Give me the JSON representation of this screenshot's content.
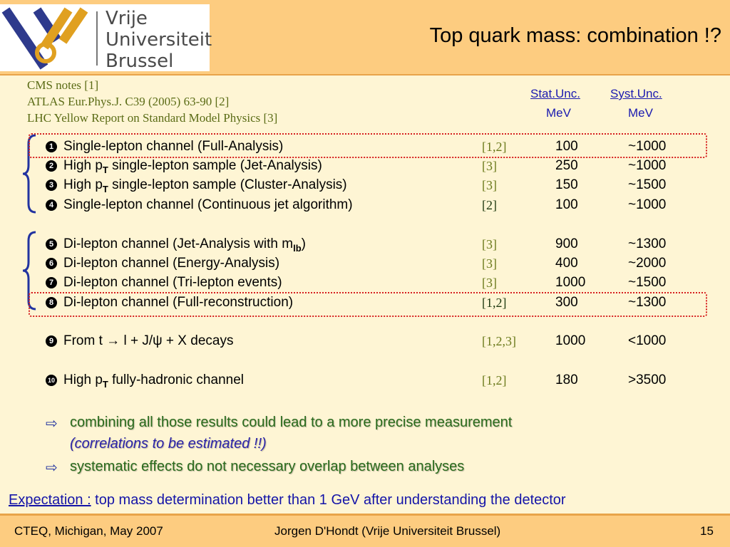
{
  "header": {
    "logo_lines": [
      "Vrije",
      "Universiteit",
      "Brussel"
    ],
    "title": "Top quark mass: combination !?"
  },
  "references": [
    "CMS notes [1]",
    "ATLAS Eur.Phys.J. C39 (2005) 63-90 [2]",
    "LHC Yellow Report on Standard Model Physics [3]"
  ],
  "columns": {
    "stat": {
      "label": "Stat.Unc.",
      "unit": "MeV"
    },
    "syst": {
      "label": "Syst.Unc.",
      "unit": "MeV"
    }
  },
  "rows": [
    {
      "n": "1",
      "text": "Single-lepton channel (Full-Analysis)",
      "ref": "[1,2]",
      "stat": "100",
      "syst": "~1000"
    },
    {
      "n": "2",
      "pre": "High p",
      "sub": "T",
      "post": " single-lepton sample (Jet-Analysis)",
      "ref": "[3]",
      "stat": "250",
      "syst": "~1000"
    },
    {
      "n": "3",
      "pre": "High p",
      "sub": "T",
      "post": " single-lepton sample (Cluster-Analysis)",
      "ref": "[3]",
      "stat": "150",
      "syst": "~1500"
    },
    {
      "n": "4",
      "text": "Single-lepton channel (Continuous jet algorithm)",
      "ref": "[2]",
      "stat": "100",
      "syst": "~1000"
    },
    {
      "n": "5",
      "pre": "Di-lepton channel (Jet-Analysis with m",
      "sub": "lb",
      "post": ")",
      "ref": "[3]",
      "stat": "900",
      "syst": "~1300"
    },
    {
      "n": "6",
      "text": "Di-lepton channel (Energy-Analysis)",
      "ref": "[3]",
      "stat": "400",
      "syst": "~2000"
    },
    {
      "n": "7",
      "text": "Di-lepton channel (Tri-lepton events)",
      "ref": "[3]",
      "stat": "1000",
      "syst": "~1500"
    },
    {
      "n": "8",
      "text": "Di-lepton channel (Full-reconstruction)",
      "ref": "[1,2]",
      "stat": "300",
      "syst": "~1300"
    },
    {
      "n": "9",
      "text": "From t → l + J/ψ + X decays",
      "ref": "[1,2,3]",
      "stat": "1000",
      "syst": "<1000"
    },
    {
      "n": "10",
      "pre": "High p",
      "sub": "T",
      "post": " fully-hadronic channel",
      "ref": "[1,2]",
      "stat": "180",
      "syst": ">3500"
    }
  ],
  "bullets": [
    {
      "text": "combining all those results could lead to a more precise measurement",
      "cont": "(correlations to be estimated !!)"
    },
    {
      "text": "systematic effects do not necessary overlap between analyses"
    }
  ],
  "expectation": {
    "label": "Expectation :",
    "text": " top mass determination better than 1 GeV after understanding the detector"
  },
  "footer": {
    "left": "CTEQ, Michigan, May 2007",
    "center": "Jorgen D'Hondt  (Vrije Universiteit Brussel)",
    "page": "15"
  },
  "colors": {
    "header": "#FDCC80",
    "background": "#FEF5D4",
    "highlight": "#D62020",
    "link": "#1A1AB0"
  }
}
